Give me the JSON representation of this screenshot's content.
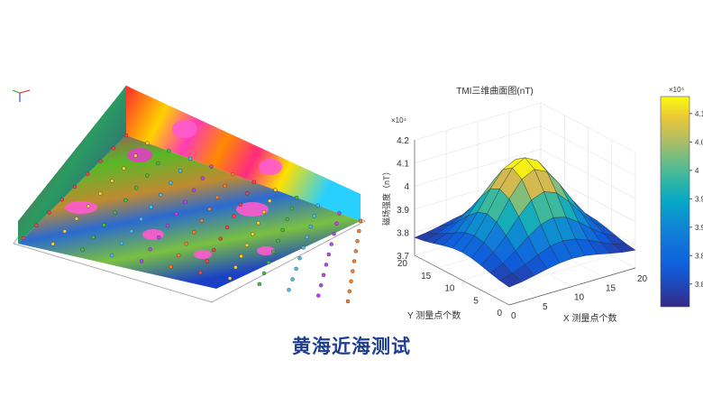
{
  "left_figure": {
    "description_icon": "3d-magnetic-volume-render",
    "axis_labels": [
      "x",
      "y",
      "z"
    ]
  },
  "caption": "黄海近海测试",
  "chart_data": {
    "type": "surface",
    "title": "TMI三维曲面图(nT)",
    "xlabel": "X 测量点个数",
    "ylabel": "Y 测量点个数",
    "zlabel": "磁场强度（nT）",
    "z_exponent_label": "×10⁴",
    "xlim": [
      0,
      20
    ],
    "ylim": [
      0,
      20
    ],
    "zlim": [
      37000,
      42000
    ],
    "xticks": [
      "0",
      "5",
      "10",
      "15",
      "20"
    ],
    "yticks": [
      "0",
      "5",
      "10",
      "15",
      "20"
    ],
    "zticks": [
      "3.7",
      "3.8",
      "3.9",
      "4",
      "4.1",
      "4.2"
    ],
    "grid": true,
    "colormap": "parula",
    "colorbar": {
      "position": "right",
      "range": [
        37600,
        41300
      ],
      "exponent_label": "×10⁴",
      "ticks": [
        "3.8",
        "3.85",
        "3.9",
        "3.95",
        "4",
        "4.05",
        "4.1"
      ]
    },
    "x": [
      0,
      2,
      4,
      6,
      8,
      10,
      12,
      14,
      16,
      18,
      20
    ],
    "y": [
      0,
      2,
      4,
      6,
      8,
      10,
      12,
      14,
      16,
      18,
      20
    ],
    "z": [
      [
        37770,
        37840,
        37950,
        38070,
        38170,
        38210,
        38170,
        38070,
        37950,
        37840,
        37770
      ],
      [
        37840,
        37990,
        38210,
        38470,
        38680,
        38760,
        38680,
        38470,
        38210,
        37990,
        37840
      ],
      [
        37950,
        38210,
        38600,
        39040,
        39410,
        39550,
        39410,
        39040,
        38600,
        38210,
        37950
      ],
      [
        38070,
        38470,
        39040,
        39700,
        40250,
        40460,
        40250,
        39700,
        39040,
        38470,
        38070
      ],
      [
        38170,
        38680,
        39410,
        40250,
        40940,
        41210,
        40940,
        40250,
        39410,
        38680,
        38170
      ],
      [
        38210,
        38760,
        39550,
        40460,
        41210,
        41500,
        41210,
        40460,
        39550,
        38760,
        38210
      ],
      [
        38170,
        38680,
        39410,
        40250,
        40940,
        41210,
        40940,
        40250,
        39410,
        38680,
        38170
      ],
      [
        38070,
        38470,
        39040,
        39700,
        40250,
        40460,
        40250,
        39700,
        39040,
        38470,
        38070
      ],
      [
        37950,
        38210,
        38600,
        39040,
        39410,
        39550,
        39410,
        39040,
        38600,
        38210,
        37950
      ],
      [
        37840,
        37990,
        38210,
        38470,
        38680,
        38760,
        38680,
        38470,
        38210,
        37990,
        37840
      ],
      [
        37770,
        37840,
        37950,
        38070,
        38170,
        38210,
        38170,
        38070,
        37950,
        37840,
        37770
      ]
    ]
  }
}
